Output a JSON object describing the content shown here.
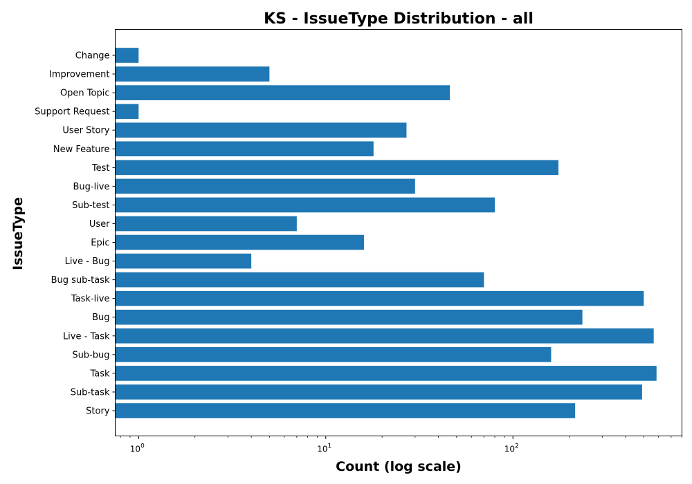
{
  "chart_data": {
    "type": "bar",
    "orientation": "horizontal",
    "title": "KS - IssueType Distribution - all",
    "xlabel": "Count (log scale)",
    "ylabel": "IssueType",
    "x_scale": "log",
    "xlim": [
      0.75,
      800
    ],
    "x_ticks": [
      {
        "value": 1,
        "base": "10",
        "exp": "0"
      },
      {
        "value": 10,
        "base": "10",
        "exp": "1"
      },
      {
        "value": 100,
        "base": "10",
        "exp": "2"
      }
    ],
    "grid": false,
    "bar_color": "#1f77b4",
    "categories": [
      "Change",
      "Improvement",
      "Open Topic",
      "Support Request",
      "User Story",
      "New Feature",
      "Test",
      "Bug-live",
      "Sub-test",
      "User",
      "Epic",
      "Live - Bug",
      "Bug sub-task",
      "Task-live",
      "Bug",
      "Live - Task",
      "Sub-bug",
      "Task",
      "Sub-task",
      "Story"
    ],
    "values": [
      1,
      5,
      46,
      1,
      27,
      18,
      175,
      30,
      80,
      7,
      16,
      4,
      70,
      500,
      235,
      565,
      160,
      585,
      490,
      215
    ]
  }
}
